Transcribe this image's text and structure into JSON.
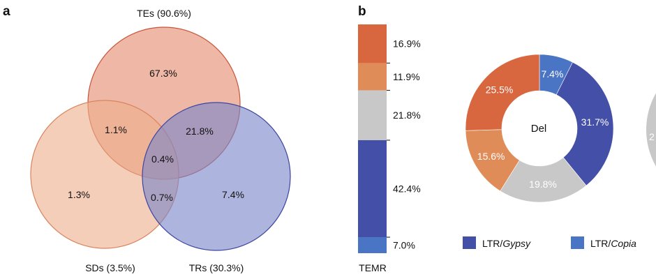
{
  "chart_data": [
    {
      "type": "venn",
      "panel_letter": "a",
      "sets": [
        {
          "name": "TEs (90.6%)",
          "color": "#e38b6f"
        },
        {
          "name": "SDs (3.5%)",
          "color": "#eeb08d"
        },
        {
          "name": "TRs (30.3%)",
          "color": "#7b86c8"
        }
      ],
      "regions": {
        "te_only": "67.3%",
        "sd_only": "1.3%",
        "tr_only": "7.4%",
        "te_sd": "1.1%",
        "te_tr": "21.8%",
        "sd_tr": "0.7%",
        "all": "0.4%"
      }
    },
    {
      "type": "stacked-bar",
      "panel_letter": "b",
      "xlabel": "TEMR",
      "segments": [
        {
          "value": 16.9,
          "label": "16.9%",
          "color": "#d8663f"
        },
        {
          "value": 11.9,
          "label": "11.9%",
          "color": "#e08c59"
        },
        {
          "value": 21.8,
          "label": "21.8%",
          "color": "#c8c8c8"
        },
        {
          "value": 42.4,
          "label": "42.4%",
          "color": "#4450a8"
        },
        {
          "value": 7.0,
          "label": "7.0%",
          "color": "#4a74c4"
        }
      ]
    },
    {
      "type": "pie",
      "center_label": "Del",
      "start_angle_deg": 0,
      "slices": [
        {
          "value": 7.4,
          "label": "7.4%",
          "color": "#4a74c4"
        },
        {
          "value": 31.7,
          "label": "31.7%",
          "color": "#4450a8"
        },
        {
          "value": 19.8,
          "label": "19.8%",
          "color": "#c8c8c8"
        },
        {
          "value": 15.6,
          "label": "15.6%",
          "color": "#e08c59"
        },
        {
          "value": 25.5,
          "label": "25.5%",
          "color": "#d8663f"
        }
      ],
      "partial_next_label": "2",
      "legend": [
        {
          "prefix": "LTR/",
          "italic": "Gypsy",
          "color": "#4450a8"
        },
        {
          "prefix": "LTR/",
          "italic": "Copia",
          "color": "#4a74c4"
        }
      ]
    }
  ]
}
